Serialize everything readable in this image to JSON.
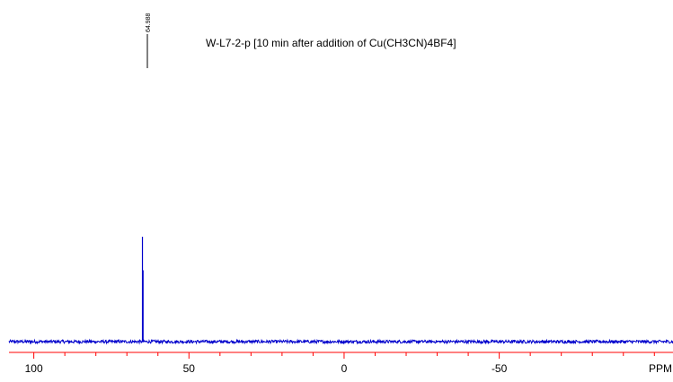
{
  "chart_data": {
    "type": "line",
    "title": "W-L7-2-p [10 min after addition of Cu(CH3CN)4BF4]",
    "xlabel": "",
    "ylabel": "",
    "x_unit_label": "PPM",
    "x_reversed": true,
    "xlim": [
      108,
      -106
    ],
    "x_ticks": [
      100,
      50,
      0,
      -50
    ],
    "x_minor_step": 10,
    "grid": false,
    "baseline_noise_level": 0.015,
    "peaks": [
      {
        "ppm": 64.988,
        "label": "64.988",
        "intensity": 1.0,
        "second_component_intensity": 0.68
      }
    ],
    "colors": {
      "trace": "#0000cc",
      "axis": "#ff0000",
      "text": "#000000",
      "peak_label_line": "#000000"
    }
  }
}
